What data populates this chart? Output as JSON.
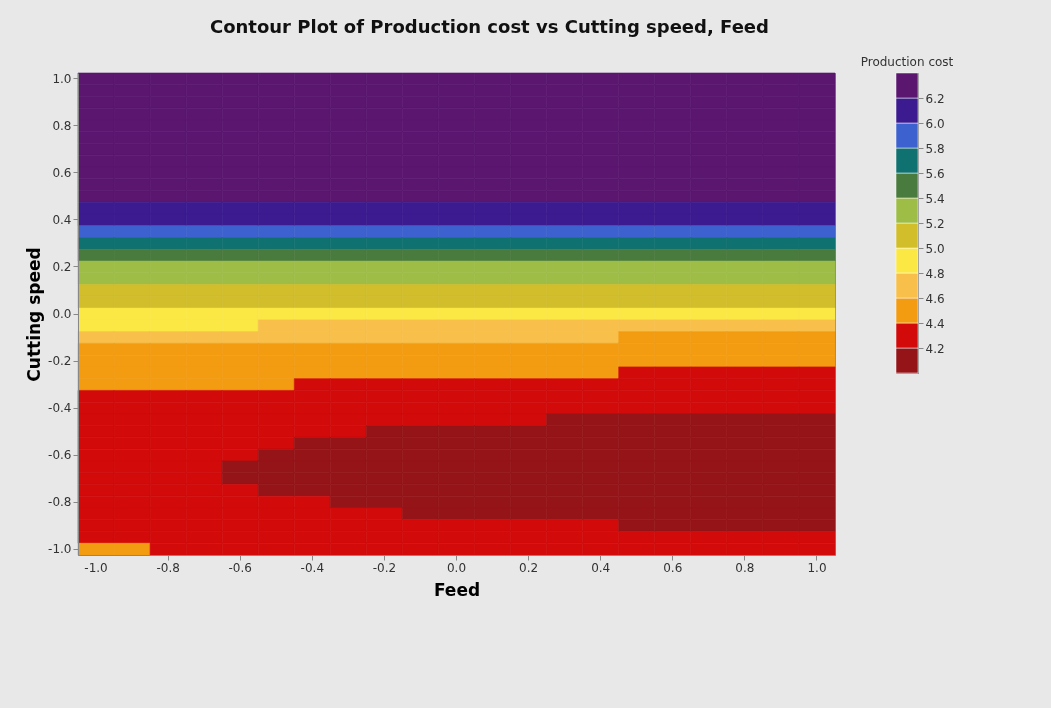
{
  "chart_data": {
    "type": "heatmap",
    "title": "Contour Plot of Production cost vs Cutting speed, Feed",
    "xlabel": "Feed",
    "ylabel": "Cutting speed",
    "clabel": "Production cost",
    "clim": [
      4.0,
      6.4
    ],
    "categories": [
      "-1.0",
      null,
      "-0.8",
      null,
      "-0.6",
      null,
      "-0.4",
      null,
      "-0.2",
      null,
      "0.0",
      null,
      "0.2",
      null,
      "0.4",
      null,
      "0.6",
      null,
      "0.8",
      null,
      "1.0"
    ],
    "y_categories": [
      "1.0",
      null,
      null,
      null,
      "0.8",
      null,
      null,
      null,
      "0.6",
      null,
      null,
      null,
      "0.4",
      null,
      null,
      null,
      "0.2",
      null,
      null,
      null,
      "0.0",
      null,
      null,
      null,
      "-0.2",
      null,
      null,
      null,
      "-0.4",
      null,
      null,
      null,
      "-0.6",
      null,
      null,
      null,
      "-0.8",
      null,
      null,
      null,
      "-1.0"
    ],
    "cticks": [
      4.2,
      4.4,
      4.6,
      4.8,
      {
        "value": 5,
        "label": "5.0"
      },
      5.2,
      5.4,
      5.6,
      5.8,
      {
        "value": 6,
        "label": "6.0"
      },
      6.2
    ],
    "colors": [
      "#951418",
      "#d20a0a",
      "#f39c12",
      "#f8c04a",
      "#fbe845",
      "#d2bd2a",
      "#9dbd46",
      "#4a7b3e",
      "#0f7271",
      "#3d62cf",
      "#3c1b90",
      "#5b1670"
    ],
    "cells": [
      [
        6.3,
        6.3,
        6.3,
        6.3,
        6.3,
        6.3,
        6.3,
        6.3,
        6.3,
        6.3,
        6.3,
        6.3,
        6.3,
        6.3,
        6.3,
        6.3,
        6.3,
        6.3,
        6.3,
        6.3,
        6.3
      ],
      [
        6.3,
        6.3,
        6.3,
        6.3,
        6.3,
        6.3,
        6.3,
        6.3,
        6.3,
        6.3,
        6.3,
        6.3,
        6.3,
        6.3,
        6.3,
        6.3,
        6.3,
        6.3,
        6.3,
        6.3,
        6.3
      ],
      [
        6.3,
        6.3,
        6.3,
        6.3,
        6.3,
        6.3,
        6.3,
        6.3,
        6.3,
        6.3,
        6.3,
        6.3,
        6.3,
        6.3,
        6.3,
        6.3,
        6.3,
        6.3,
        6.3,
        6.3,
        6.3
      ],
      [
        6.3,
        6.3,
        6.3,
        6.3,
        6.3,
        6.3,
        6.3,
        6.3,
        6.3,
        6.3,
        6.3,
        6.3,
        6.3,
        6.3,
        6.3,
        6.3,
        6.3,
        6.3,
        6.3,
        6.3,
        6.3
      ],
      [
        6.3,
        6.3,
        6.3,
        6.3,
        6.3,
        6.3,
        6.3,
        6.3,
        6.3,
        6.3,
        6.3,
        6.3,
        6.3,
        6.3,
        6.3,
        6.3,
        6.3,
        6.3,
        6.3,
        6.3,
        6.3
      ],
      [
        6.3,
        6.3,
        6.3,
        6.3,
        6.3,
        6.3,
        6.3,
        6.3,
        6.3,
        6.3,
        6.3,
        6.3,
        6.3,
        6.3,
        6.3,
        6.3,
        6.3,
        6.3,
        6.3,
        6.3,
        6.3
      ],
      [
        6.3,
        6.3,
        6.3,
        6.3,
        6.3,
        6.3,
        6.3,
        6.3,
        6.3,
        6.3,
        6.3,
        6.3,
        6.3,
        6.3,
        6.3,
        6.3,
        6.3,
        6.3,
        6.3,
        6.3,
        6.3
      ],
      [
        6.3,
        6.3,
        6.3,
        6.3,
        6.3,
        6.3,
        6.3,
        6.3,
        6.3,
        6.3,
        6.3,
        6.3,
        6.3,
        6.3,
        6.3,
        6.3,
        6.3,
        6.3,
        6.3,
        6.3,
        6.3
      ],
      [
        6.3,
        6.3,
        6.3,
        6.3,
        6.3,
        6.3,
        6.3,
        6.3,
        6.3,
        6.3,
        6.3,
        6.3,
        6.3,
        6.3,
        6.3,
        6.3,
        6.3,
        6.3,
        6.3,
        6.3,
        6.3
      ],
      [
        6.3,
        6.3,
        6.3,
        6.3,
        6.3,
        6.3,
        6.3,
        6.3,
        6.3,
        6.3,
        6.3,
        6.3,
        6.3,
        6.3,
        6.3,
        6.3,
        6.3,
        6.3,
        6.3,
        6.3,
        6.3
      ],
      [
        6.3,
        6.3,
        6.3,
        6.3,
        6.3,
        6.3,
        6.3,
        6.3,
        6.3,
        6.3,
        6.3,
        6.3,
        6.3,
        6.3,
        6.3,
        6.3,
        6.3,
        6.3,
        6.3,
        6.3,
        6.3
      ],
      [
        6.1,
        6.1,
        6.1,
        6.1,
        6.1,
        6.1,
        6.1,
        6.1,
        6.1,
        6.1,
        6.1,
        6.1,
        6.1,
        6.1,
        6.1,
        6.1,
        6.1,
        6.1,
        6.1,
        6.1,
        6.1
      ],
      [
        6.1,
        6.1,
        6.1,
        6.1,
        6.1,
        6.1,
        6.1,
        6.1,
        6.1,
        6.1,
        6.1,
        6.1,
        6.1,
        6.1,
        6.1,
        6.1,
        6.1,
        6.1,
        6.1,
        6.1,
        6.1
      ],
      [
        5.9,
        5.9,
        5.9,
        5.9,
        5.9,
        5.9,
        5.9,
        5.9,
        5.9,
        5.9,
        5.9,
        5.9,
        5.9,
        5.9,
        5.9,
        5.9,
        5.9,
        5.9,
        5.9,
        5.9,
        5.9
      ],
      [
        5.7,
        5.7,
        5.7,
        5.7,
        5.7,
        5.7,
        5.7,
        5.7,
        5.7,
        5.7,
        5.7,
        5.7,
        5.7,
        5.7,
        5.7,
        5.7,
        5.7,
        5.7,
        5.7,
        5.7,
        5.7
      ],
      [
        5.5,
        5.5,
        5.5,
        5.5,
        5.5,
        5.5,
        5.5,
        5.5,
        5.5,
        5.5,
        5.5,
        5.5,
        5.5,
        5.5,
        5.5,
        5.5,
        5.5,
        5.5,
        5.5,
        5.5,
        5.5
      ],
      [
        5.3,
        5.3,
        5.3,
        5.3,
        5.3,
        5.3,
        5.3,
        5.3,
        5.3,
        5.3,
        5.3,
        5.3,
        5.3,
        5.3,
        5.3,
        5.3,
        5.3,
        5.3,
        5.3,
        5.3,
        5.3
      ],
      [
        5.3,
        5.3,
        5.3,
        5.3,
        5.3,
        5.3,
        5.3,
        5.3,
        5.3,
        5.3,
        5.3,
        5.3,
        5.3,
        5.3,
        5.3,
        5.3,
        5.3,
        5.3,
        5.3,
        5.3,
        5.3
      ],
      [
        5.1,
        5.1,
        5.1,
        5.1,
        5.1,
        5.1,
        5.1,
        5.1,
        5.1,
        5.1,
        5.1,
        5.1,
        5.1,
        5.1,
        5.1,
        5.1,
        5.1,
        5.1,
        5.1,
        5.1,
        5.1
      ],
      [
        5.1,
        5.1,
        5.1,
        5.1,
        5.1,
        5.1,
        5.1,
        5.1,
        5.1,
        5.1,
        5.1,
        5.1,
        5.1,
        5.1,
        5.1,
        5.1,
        5.1,
        5.1,
        5.1,
        5.1,
        5.1
      ],
      [
        4.9,
        4.9,
        4.9,
        4.9,
        4.9,
        4.9,
        4.9,
        4.9,
        4.9,
        4.9,
        4.9,
        4.9,
        4.9,
        4.9,
        4.9,
        4.9,
        4.9,
        4.9,
        4.9,
        4.9,
        4.9
      ],
      [
        4.9,
        4.9,
        4.9,
        4.9,
        4.9,
        4.7,
        4.7,
        4.7,
        4.7,
        4.7,
        4.7,
        4.7,
        4.7,
        4.7,
        4.7,
        4.7,
        4.7,
        4.7,
        4.7,
        4.7,
        4.7
      ],
      [
        4.7,
        4.7,
        4.7,
        4.7,
        4.7,
        4.7,
        4.7,
        4.7,
        4.7,
        4.7,
        4.7,
        4.7,
        4.7,
        4.7,
        4.7,
        4.5,
        4.5,
        4.5,
        4.5,
        4.5,
        4.5
      ],
      [
        4.5,
        4.5,
        4.5,
        4.5,
        4.5,
        4.5,
        4.5,
        4.5,
        4.5,
        4.5,
        4.5,
        4.5,
        4.5,
        4.5,
        4.5,
        4.5,
        4.5,
        4.5,
        4.5,
        4.5,
        4.5
      ],
      [
        4.5,
        4.5,
        4.5,
        4.5,
        4.5,
        4.5,
        4.5,
        4.5,
        4.5,
        4.5,
        4.5,
        4.5,
        4.5,
        4.5,
        4.5,
        4.5,
        4.5,
        4.5,
        4.5,
        4.5,
        4.5
      ],
      [
        4.5,
        4.5,
        4.5,
        4.5,
        4.5,
        4.5,
        4.5,
        4.5,
        4.5,
        4.5,
        4.5,
        4.5,
        4.5,
        4.5,
        4.5,
        4.3,
        4.3,
        4.3,
        4.3,
        4.3,
        4.3
      ],
      [
        4.5,
        4.5,
        4.5,
        4.5,
        4.5,
        4.5,
        4.3,
        4.3,
        4.3,
        4.3,
        4.3,
        4.3,
        4.3,
        4.3,
        4.3,
        4.3,
        4.3,
        4.3,
        4.3,
        4.3,
        4.3
      ],
      [
        4.3,
        4.3,
        4.3,
        4.3,
        4.3,
        4.3,
        4.3,
        4.3,
        4.3,
        4.3,
        4.3,
        4.3,
        4.3,
        4.3,
        4.3,
        4.3,
        4.3,
        4.3,
        4.3,
        4.3,
        4.3
      ],
      [
        4.3,
        4.3,
        4.3,
        4.3,
        4.3,
        4.3,
        4.3,
        4.3,
        4.3,
        4.3,
        4.3,
        4.3,
        4.3,
        4.3,
        4.3,
        4.3,
        4.3,
        4.3,
        4.3,
        4.3,
        4.3
      ],
      [
        4.3,
        4.3,
        4.3,
        4.3,
        4.3,
        4.3,
        4.3,
        4.3,
        4.3,
        4.3,
        4.3,
        4.3,
        4.3,
        4.1,
        4.1,
        4.1,
        4.1,
        4.1,
        4.1,
        4.1,
        4.1
      ],
      [
        4.3,
        4.3,
        4.3,
        4.3,
        4.3,
        4.3,
        4.3,
        4.3,
        4.1,
        4.1,
        4.1,
        4.1,
        4.1,
        4.1,
        4.1,
        4.1,
        4.1,
        4.1,
        4.1,
        4.1,
        4.1
      ],
      [
        4.3,
        4.3,
        4.3,
        4.3,
        4.3,
        4.3,
        4.1,
        4.1,
        4.1,
        4.1,
        4.1,
        4.1,
        4.1,
        4.1,
        4.1,
        4.1,
        4.1,
        4.1,
        4.1,
        4.1,
        4.1
      ],
      [
        4.3,
        4.3,
        4.3,
        4.3,
        4.3,
        4.1,
        4.1,
        4.1,
        4.1,
        4.1,
        4.1,
        4.1,
        4.1,
        4.1,
        4.1,
        4.1,
        4.1,
        4.1,
        4.1,
        4.1,
        4.1
      ],
      [
        4.3,
        4.3,
        4.3,
        4.3,
        4.1,
        4.1,
        4.1,
        4.1,
        4.1,
        4.1,
        4.1,
        4.1,
        4.1,
        4.1,
        4.1,
        4.1,
        4.1,
        4.1,
        4.1,
        4.1,
        4.1
      ],
      [
        4.3,
        4.3,
        4.3,
        4.3,
        4.1,
        4.1,
        4.1,
        4.1,
        4.1,
        4.1,
        4.1,
        4.1,
        4.1,
        4.1,
        4.1,
        4.1,
        4.1,
        4.1,
        4.1,
        4.1,
        4.1
      ],
      [
        4.3,
        4.3,
        4.3,
        4.3,
        4.3,
        4.1,
        4.1,
        4.1,
        4.1,
        4.1,
        4.1,
        4.1,
        4.1,
        4.1,
        4.1,
        4.1,
        4.1,
        4.1,
        4.1,
        4.1,
        4.1
      ],
      [
        4.3,
        4.3,
        4.3,
        4.3,
        4.3,
        4.3,
        4.3,
        4.1,
        4.1,
        4.1,
        4.1,
        4.1,
        4.1,
        4.1,
        4.1,
        4.1,
        4.1,
        4.1,
        4.1,
        4.1,
        4.1
      ],
      [
        4.3,
        4.3,
        4.3,
        4.3,
        4.3,
        4.3,
        4.3,
        4.3,
        4.3,
        4.1,
        4.1,
        4.1,
        4.1,
        4.1,
        4.1,
        4.1,
        4.1,
        4.1,
        4.1,
        4.1,
        4.1
      ],
      [
        4.3,
        4.3,
        4.3,
        4.3,
        4.3,
        4.3,
        4.3,
        4.3,
        4.3,
        4.3,
        4.3,
        4.3,
        4.3,
        4.3,
        4.3,
        4.1,
        4.1,
        4.1,
        4.1,
        4.1,
        4.1
      ],
      [
        4.3,
        4.3,
        4.3,
        4.3,
        4.3,
        4.3,
        4.3,
        4.3,
        4.3,
        4.3,
        4.3,
        4.3,
        4.3,
        4.3,
        4.3,
        4.3,
        4.3,
        4.3,
        4.3,
        4.3,
        4.3
      ],
      [
        4.5,
        4.5,
        4.3,
        4.3,
        4.3,
        4.3,
        4.3,
        4.3,
        4.3,
        4.3,
        4.3,
        4.3,
        4.3,
        4.3,
        4.3,
        4.3,
        4.3,
        4.3,
        4.3,
        4.3,
        4.3
      ]
    ]
  }
}
